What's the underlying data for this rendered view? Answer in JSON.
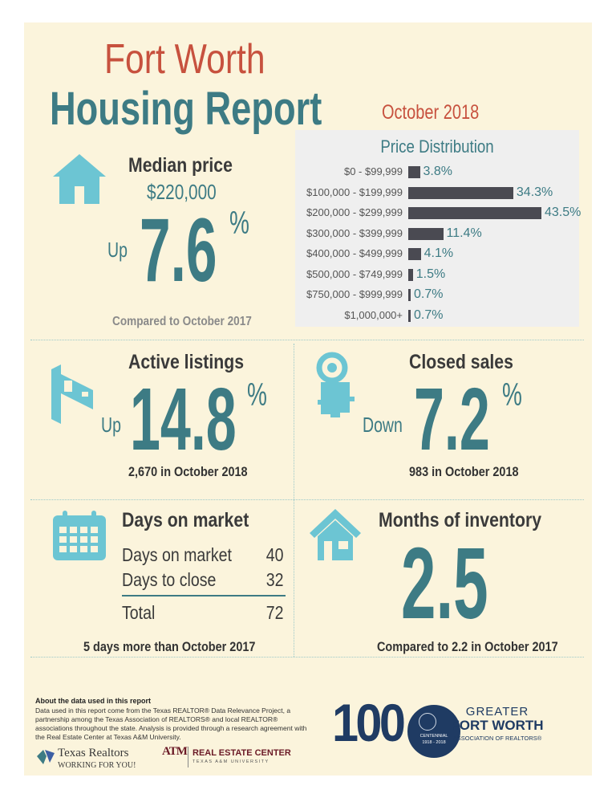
{
  "header": {
    "title_line1": "Fort Worth",
    "title_line2": "Housing Report",
    "date": "October 2018"
  },
  "median": {
    "label": "Median price",
    "price": "$220,000",
    "direction": "Up",
    "value": "7.6",
    "percent": "%",
    "caption": "Compared to October 2017"
  },
  "price_distribution": {
    "title": "Price Distribution",
    "rows": [
      {
        "label": "$0 - $99,999",
        "value": "3.8%",
        "pct": 3.8
      },
      {
        "label": "$100,000 - $199,999",
        "value": "34.3%",
        "pct": 34.3
      },
      {
        "label": "$200,000 - $299,999",
        "value": "43.5%",
        "pct": 43.5
      },
      {
        "label": "$300,000 - $399,999",
        "value": "11.4%",
        "pct": 11.4
      },
      {
        "label": "$400,000 - $499,999",
        "value": "4.1%",
        "pct": 4.1
      },
      {
        "label": "$500,000 - $749,999",
        "value": "1.5%",
        "pct": 1.5
      },
      {
        "label": "$750,000 - $999,999",
        "value": "0.7%",
        "pct": 0.7
      },
      {
        "label": "$1,000,000+",
        "value": "0.7%",
        "pct": 0.7
      }
    ]
  },
  "active": {
    "label": "Active listings",
    "direction": "Up",
    "value": "14.8",
    "percent": "%",
    "caption": "2,670 in October 2018"
  },
  "closed": {
    "label": "Closed sales",
    "direction": "Down",
    "value": "7.2",
    "percent": "%",
    "caption": "983 in October 2018"
  },
  "dom": {
    "label": "Days on market",
    "rows": [
      {
        "label": "Days on market",
        "value": "40"
      },
      {
        "label": "Days to close",
        "value": "32"
      }
    ],
    "total_label": "Total",
    "total_value": "72",
    "caption": "5 days more than October 2017"
  },
  "inventory": {
    "label": "Months of inventory",
    "value": "2.5",
    "caption": "Compared to 2.2 in October 2017"
  },
  "footer": {
    "heading": "About the data used in this report",
    "text": "Data used in this report come from the Texas REALTOR® Data Relevance Project, a partnership among the Texas Association of REALTORS® and local REALTOR® associations throughout the state. Analysis is provided through a research agreement with the Real Estate Center at Texas A&M University.",
    "tr_name": "Texas Realtors",
    "tr_tagline": "WORKING FOR YOU!",
    "rec_name": "REAL ESTATE CENTER",
    "rec_sub": "TEXAS A&M UNIVERSITY",
    "atm": "ATM",
    "hundred": "100",
    "centennial": "CENTENNIAL",
    "years": "1918 - 2018",
    "gfw1": "GREATER",
    "gfw2": "FORT WORTH",
    "gfw3": "ASSOCIATION OF REALTORS®"
  },
  "colors": {
    "teal": "#3d7b84",
    "red": "#c7513e",
    "icon": "#6cc5d3",
    "bar": "#4a4a52"
  }
}
